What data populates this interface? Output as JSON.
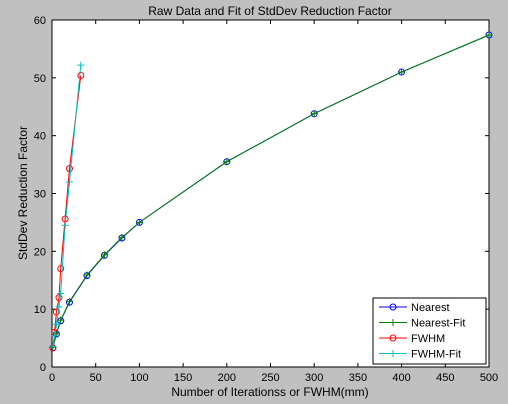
{
  "chart_data": {
    "type": "line",
    "title": "Raw Data and Fit of StdDev Reduction Factor",
    "xlabel": "Number of Iterationss or FWHM(mm)",
    "ylabel": "StdDev Reduction Factor",
    "xlim": [
      0,
      500
    ],
    "ylim": [
      0,
      60
    ],
    "xticks": [
      "0",
      "50",
      "100",
      "150",
      "200",
      "250",
      "300",
      "350",
      "400",
      "450",
      "500"
    ],
    "yticks": [
      "0",
      "10",
      "20",
      "30",
      "40",
      "50",
      "60"
    ],
    "grid": false,
    "legend_position": "bottom-right",
    "series": [
      {
        "name": "Nearest",
        "color": "#0000ff",
        "marker": "circle",
        "line": true,
        "x": [
          1,
          5,
          10,
          20,
          40,
          60,
          80,
          100,
          200,
          300,
          400,
          500
        ],
        "y": [
          3.3,
          5.7,
          8.0,
          11.2,
          15.8,
          19.3,
          22.3,
          25.0,
          35.5,
          43.8,
          51.0,
          57.4
        ]
      },
      {
        "name": "Nearest-Fit",
        "color": "#008000",
        "marker": "plus",
        "line": true,
        "x": [
          1,
          5,
          10,
          20,
          40,
          60,
          80,
          100,
          200,
          300,
          400,
          500
        ],
        "y": [
          3.4,
          5.8,
          8.1,
          11.3,
          15.9,
          19.4,
          22.4,
          25.0,
          35.5,
          43.8,
          51.0,
          57.4
        ]
      },
      {
        "name": "FWHM",
        "color": "#ff0000",
        "marker": "circle",
        "line": true,
        "x": [
          1,
          3,
          5,
          8,
          10,
          15,
          20,
          33
        ],
        "y": [
          3.3,
          6.0,
          9.5,
          12.0,
          17.0,
          25.6,
          34.3,
          50.4
        ]
      },
      {
        "name": "FWHM-Fit",
        "color": "#00bfbf",
        "marker": "plus",
        "line": true,
        "x": [
          1,
          3,
          5,
          8,
          10,
          15,
          20,
          33
        ],
        "y": [
          3.6,
          5.5,
          7.4,
          10.4,
          12.7,
          24.5,
          32.0,
          52.2
        ]
      }
    ]
  }
}
